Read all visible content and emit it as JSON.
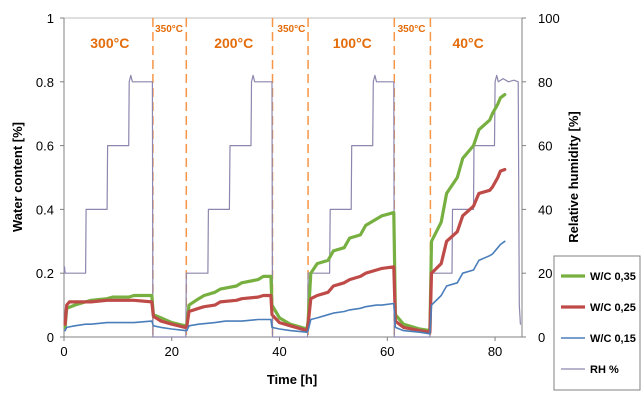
{
  "chart_data": {
    "type": "line",
    "xlabel": "Time [h]",
    "ylabel_left": "Water content [%]",
    "ylabel_right": "Relative humidity [%]",
    "xlim": [
      0,
      85
    ],
    "ylim_left": [
      0,
      1
    ],
    "ylim_right": [
      0,
      100
    ],
    "x_ticks": [
      0,
      20,
      40,
      60,
      80
    ],
    "y_left_ticks": [
      0,
      0.2,
      0.4,
      0.6,
      0.8,
      1
    ],
    "y_right_ticks": [
      0,
      20,
      40,
      60,
      80,
      100
    ],
    "temperature_annotations": [
      {
        "label": "300°C",
        "x": 8.5,
        "size": "large"
      },
      {
        "label": "350°C",
        "x": 19.5,
        "size": "small"
      },
      {
        "label": "200°C",
        "x": 31.5,
        "size": "large"
      },
      {
        "label": "350°C",
        "x": 42.2,
        "size": "small"
      },
      {
        "label": "100°C",
        "x": 53.5,
        "size": "large"
      },
      {
        "label": "350°C",
        "x": 64.5,
        "size": "small"
      },
      {
        "label": "40°C",
        "x": 75,
        "size": "large"
      }
    ],
    "boundaries": [
      16.5,
      22.7,
      38.7,
      45.3,
      61.3,
      68
    ],
    "series": [
      {
        "name": "W/C 0,35",
        "axis": "left",
        "color": "#77b041",
        "points": [
          [
            0.2,
            0.03
          ],
          [
            0.5,
            0.09
          ],
          [
            2,
            0.1
          ],
          [
            4,
            0.11
          ],
          [
            5,
            0.115
          ],
          [
            8,
            0.12
          ],
          [
            9,
            0.125
          ],
          [
            12,
            0.125
          ],
          [
            13,
            0.13
          ],
          [
            16.3,
            0.13
          ],
          [
            16.6,
            0.07
          ],
          [
            18,
            0.06
          ],
          [
            20,
            0.045
          ],
          [
            22.5,
            0.035
          ],
          [
            22.8,
            0.04
          ],
          [
            23.2,
            0.1
          ],
          [
            25,
            0.12
          ],
          [
            26,
            0.13
          ],
          [
            28,
            0.14
          ],
          [
            29,
            0.15
          ],
          [
            32,
            0.16
          ],
          [
            33,
            0.17
          ],
          [
            36,
            0.18
          ],
          [
            37,
            0.19
          ],
          [
            38.4,
            0.19
          ],
          [
            38.6,
            0.1
          ],
          [
            40,
            0.06
          ],
          [
            42,
            0.04
          ],
          [
            45.1,
            0.025
          ],
          [
            45.3,
            0.05
          ],
          [
            45.8,
            0.2
          ],
          [
            47,
            0.23
          ],
          [
            49,
            0.24
          ],
          [
            50,
            0.27
          ],
          [
            52,
            0.28
          ],
          [
            53,
            0.31
          ],
          [
            55,
            0.32
          ],
          [
            56,
            0.35
          ],
          [
            58,
            0.37
          ],
          [
            59,
            0.38
          ],
          [
            61.2,
            0.39
          ],
          [
            61.5,
            0.07
          ],
          [
            63,
            0.04
          ],
          [
            66,
            0.025
          ],
          [
            67.9,
            0.02
          ],
          [
            68.2,
            0.3
          ],
          [
            70,
            0.36
          ],
          [
            71,
            0.45
          ],
          [
            73,
            0.5
          ],
          [
            74,
            0.56
          ],
          [
            76,
            0.6
          ],
          [
            77,
            0.65
          ],
          [
            79,
            0.68
          ],
          [
            79.5,
            0.7
          ],
          [
            80.5,
            0.73
          ],
          [
            81,
            0.75
          ],
          [
            81.8,
            0.76
          ]
        ]
      },
      {
        "name": "W/C 0,25",
        "axis": "left",
        "color": "#be4b48",
        "points": [
          [
            0.2,
            0.04
          ],
          [
            0.5,
            0.1
          ],
          [
            1,
            0.11
          ],
          [
            4,
            0.11
          ],
          [
            5,
            0.11
          ],
          [
            8,
            0.115
          ],
          [
            9,
            0.115
          ],
          [
            12,
            0.115
          ],
          [
            13,
            0.115
          ],
          [
            16.3,
            0.11
          ],
          [
            16.6,
            0.065
          ],
          [
            18,
            0.05
          ],
          [
            20,
            0.04
          ],
          [
            22.5,
            0.03
          ],
          [
            22.8,
            0.035
          ],
          [
            23.2,
            0.08
          ],
          [
            25,
            0.09
          ],
          [
            26,
            0.095
          ],
          [
            28,
            0.1
          ],
          [
            29,
            0.11
          ],
          [
            32,
            0.115
          ],
          [
            33,
            0.12
          ],
          [
            36,
            0.125
          ],
          [
            37,
            0.13
          ],
          [
            38.4,
            0.13
          ],
          [
            38.6,
            0.07
          ],
          [
            40,
            0.045
          ],
          [
            42,
            0.035
          ],
          [
            45.1,
            0.02
          ],
          [
            45.3,
            0.04
          ],
          [
            45.8,
            0.12
          ],
          [
            47,
            0.13
          ],
          [
            49,
            0.14
          ],
          [
            50,
            0.16
          ],
          [
            52,
            0.17
          ],
          [
            53,
            0.18
          ],
          [
            55,
            0.19
          ],
          [
            56,
            0.2
          ],
          [
            58,
            0.21
          ],
          [
            59,
            0.215
          ],
          [
            61.2,
            0.22
          ],
          [
            61.5,
            0.05
          ],
          [
            63,
            0.03
          ],
          [
            66,
            0.02
          ],
          [
            67.9,
            0.015
          ],
          [
            68.2,
            0.2
          ],
          [
            70,
            0.23
          ],
          [
            71,
            0.3
          ],
          [
            73,
            0.33
          ],
          [
            74,
            0.38
          ],
          [
            76,
            0.41
          ],
          [
            77,
            0.45
          ],
          [
            79,
            0.46
          ],
          [
            79.5,
            0.47
          ],
          [
            80.5,
            0.5
          ],
          [
            81,
            0.52
          ],
          [
            81.8,
            0.525
          ]
        ]
      },
      {
        "name": "W/C 0,15",
        "axis": "left",
        "color": "#4a7ebb",
        "points": [
          [
            0.2,
            0.02
          ],
          [
            0.5,
            0.03
          ],
          [
            2,
            0.035
          ],
          [
            4,
            0.04
          ],
          [
            5,
            0.04
          ],
          [
            8,
            0.045
          ],
          [
            9,
            0.045
          ],
          [
            12,
            0.045
          ],
          [
            13,
            0.045
          ],
          [
            16.3,
            0.05
          ],
          [
            16.6,
            0.035
          ],
          [
            18,
            0.03
          ],
          [
            20,
            0.025
          ],
          [
            22.5,
            0.02
          ],
          [
            22.8,
            0.02
          ],
          [
            23.2,
            0.035
          ],
          [
            25,
            0.04
          ],
          [
            28,
            0.045
          ],
          [
            30,
            0.05
          ],
          [
            33,
            0.05
          ],
          [
            36,
            0.055
          ],
          [
            38.4,
            0.055
          ],
          [
            38.6,
            0.03
          ],
          [
            40,
            0.025
          ],
          [
            42,
            0.02
          ],
          [
            45.1,
            0.015
          ],
          [
            45.3,
            0.02
          ],
          [
            45.8,
            0.055
          ],
          [
            47,
            0.06
          ],
          [
            49,
            0.07
          ],
          [
            50,
            0.075
          ],
          [
            52,
            0.08
          ],
          [
            53,
            0.085
          ],
          [
            55,
            0.09
          ],
          [
            56,
            0.095
          ],
          [
            58,
            0.1
          ],
          [
            59,
            0.1
          ],
          [
            61.2,
            0.105
          ],
          [
            61.5,
            0.03
          ],
          [
            63,
            0.02
          ],
          [
            66,
            0.015
          ],
          [
            67.9,
            0.01
          ],
          [
            68.2,
            0.1
          ],
          [
            70,
            0.13
          ],
          [
            71,
            0.16
          ],
          [
            73,
            0.17
          ],
          [
            74,
            0.2
          ],
          [
            76,
            0.21
          ],
          [
            77,
            0.24
          ],
          [
            79,
            0.255
          ],
          [
            79.5,
            0.26
          ],
          [
            80.5,
            0.28
          ],
          [
            81,
            0.29
          ],
          [
            81.8,
            0.3
          ]
        ]
      },
      {
        "name": "RH %",
        "axis": "right",
        "color": "#8e86ae",
        "points": [
          [
            0,
            20
          ],
          [
            0.1,
            22
          ],
          [
            0.2,
            20
          ],
          [
            4,
            20
          ],
          [
            4.1,
            40
          ],
          [
            8,
            40
          ],
          [
            8.1,
            60
          ],
          [
            12,
            60
          ],
          [
            12.1,
            80
          ],
          [
            12.4,
            82
          ],
          [
            12.7,
            80
          ],
          [
            16.4,
            80
          ],
          [
            16.5,
            0
          ],
          [
            22.6,
            0
          ],
          [
            22.7,
            20
          ],
          [
            26.7,
            20
          ],
          [
            26.8,
            40
          ],
          [
            30.7,
            40
          ],
          [
            30.8,
            60
          ],
          [
            34.7,
            60
          ],
          [
            34.8,
            80
          ],
          [
            35.1,
            82
          ],
          [
            35.4,
            80
          ],
          [
            38.6,
            80
          ],
          [
            38.7,
            0
          ],
          [
            45.2,
            0
          ],
          [
            45.3,
            20
          ],
          [
            49.3,
            20
          ],
          [
            49.4,
            40
          ],
          [
            53.3,
            40
          ],
          [
            53.4,
            60
          ],
          [
            57.3,
            60
          ],
          [
            57.4,
            80
          ],
          [
            57.7,
            82
          ],
          [
            58,
            80
          ],
          [
            61.2,
            80
          ],
          [
            61.3,
            0
          ],
          [
            67.9,
            0
          ],
          [
            68,
            20
          ],
          [
            72,
            20
          ],
          [
            72.1,
            40
          ],
          [
            76,
            40
          ],
          [
            76.1,
            60
          ],
          [
            79.9,
            60
          ],
          [
            80,
            80
          ],
          [
            80.3,
            82
          ],
          [
            80.6,
            80
          ],
          [
            81.5,
            81
          ],
          [
            82.5,
            80
          ],
          [
            83.5,
            80.5
          ],
          [
            84.3,
            80
          ],
          [
            84.5,
            10
          ],
          [
            84.7,
            4
          ]
        ]
      }
    ],
    "legend": {
      "placement": "right",
      "entries": [
        "W/C 0,35",
        "W/C 0,25",
        "W/C 0,15",
        "RH %"
      ]
    },
    "grid": false
  }
}
